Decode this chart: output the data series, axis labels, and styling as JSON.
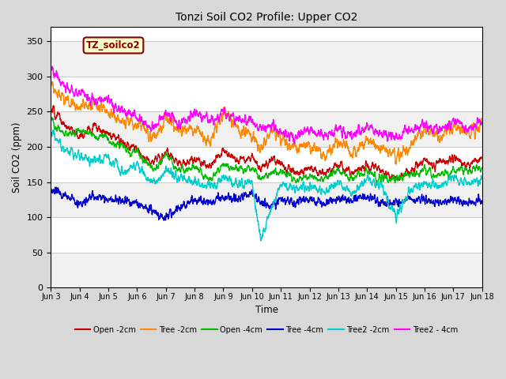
{
  "title": "Tonzi Soil CO2 Profile: Upper CO2",
  "xlabel": "Time",
  "ylabel": "Soil CO2 (ppm)",
  "ylim": [
    0,
    370
  ],
  "yticks": [
    0,
    50,
    100,
    150,
    200,
    250,
    300,
    350
  ],
  "fig_bg": "#d8d8d8",
  "plot_bg": "#ffffff",
  "grid_color": "#c8c8c8",
  "series": {
    "Open -2cm": {
      "color": "#cc0000",
      "lw": 1.0
    },
    "Tree -2cm": {
      "color": "#ff8800",
      "lw": 1.0
    },
    "Open -4cm": {
      "color": "#00bb00",
      "lw": 1.0
    },
    "Tree -4cm": {
      "color": "#0000cc",
      "lw": 1.0
    },
    "Tree2 -2cm": {
      "color": "#00cccc",
      "lw": 1.0
    },
    "Tree2 - 4cm": {
      "color": "#ff00ff",
      "lw": 1.0
    }
  },
  "legend_label": "TZ_soilco2",
  "legend_bg": "#ffffcc",
  "legend_edge": "#8b0000",
  "n_points": 3000,
  "x_start": 3,
  "x_end": 18,
  "xtick_positions": [
    3,
    4,
    5,
    6,
    7,
    8,
    9,
    10,
    11,
    12,
    13,
    14,
    15,
    16,
    17,
    18
  ],
  "xtick_labels": [
    "Jun 3",
    "Jun 4",
    "Jun 5",
    "Jun 6",
    "Jun 7",
    "Jun 8",
    "Jun 9",
    "Jun 10",
    "Jun 11",
    "Jun 12",
    "Jun 13",
    "Jun 14",
    "Jun 15",
    "Jun 16",
    "Jun 17",
    "Jun 18"
  ]
}
